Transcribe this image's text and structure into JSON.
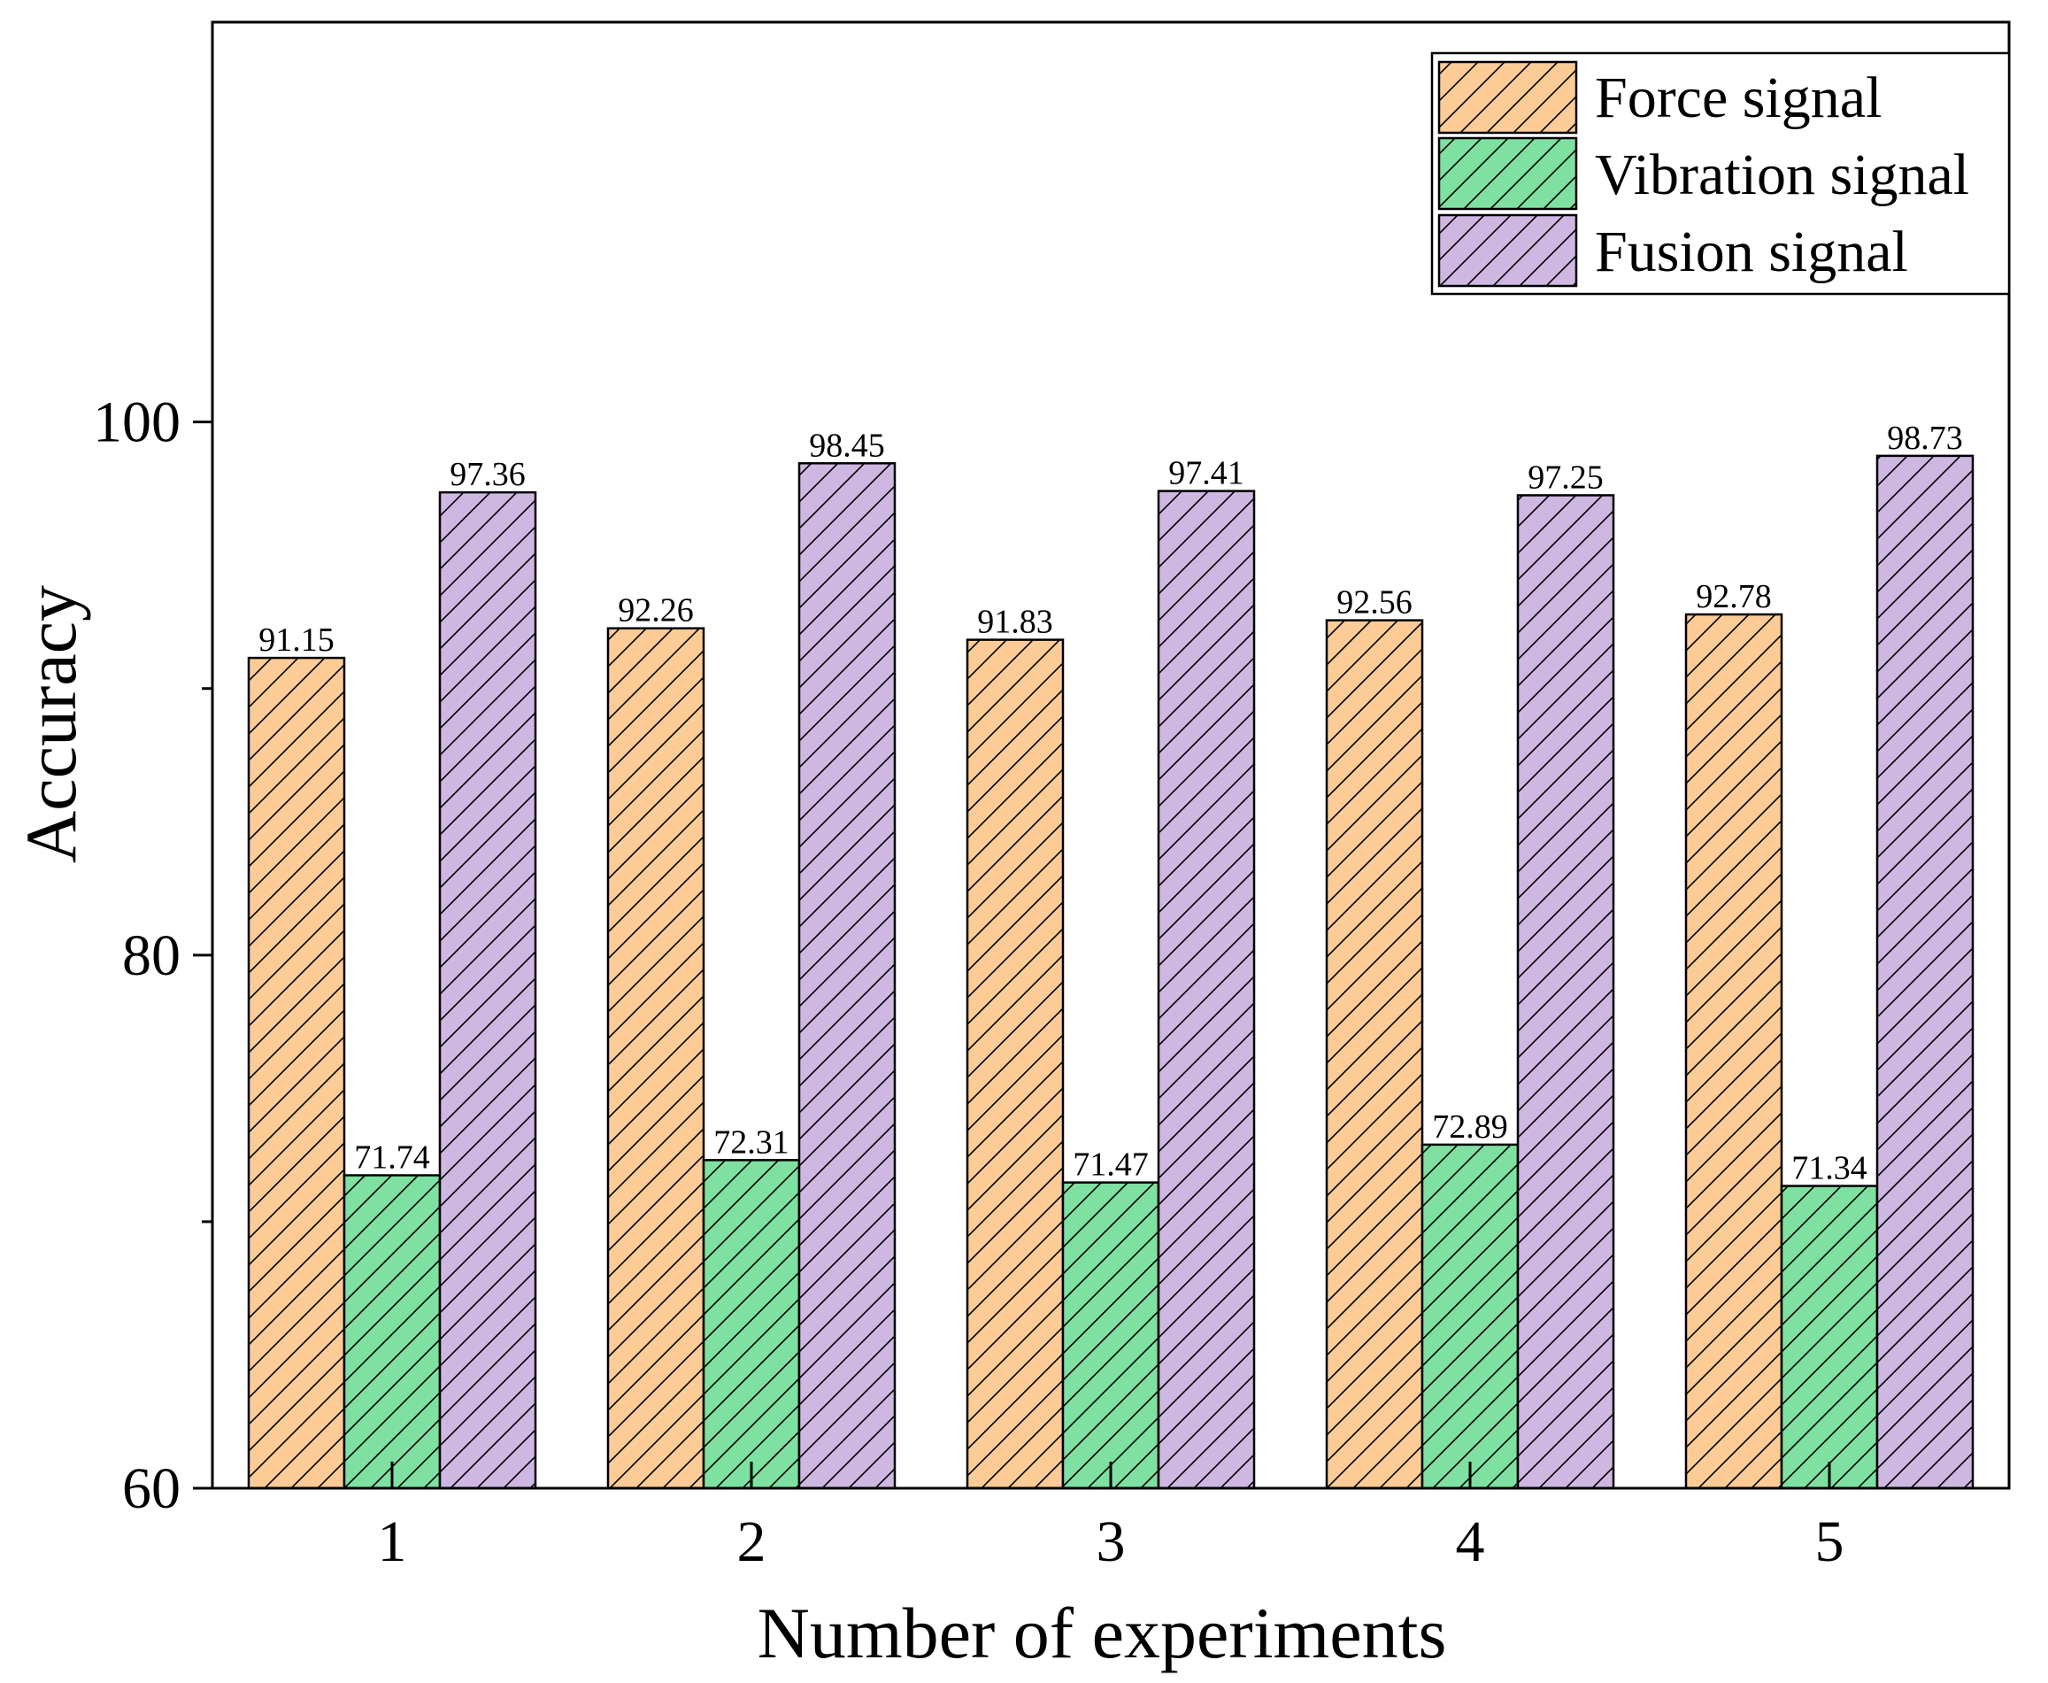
{
  "chart_data": {
    "type": "bar",
    "title": "",
    "xlabel": "Number of experiments",
    "ylabel": "Accuracy",
    "categories": [
      "1",
      "2",
      "3",
      "4",
      "5"
    ],
    "ylim": [
      60,
      115
    ],
    "yticks": [
      60,
      80,
      100
    ],
    "series": [
      {
        "name": "Force signal",
        "color": "#FDCC96",
        "pattern": "hatch-diagonal",
        "values": [
          91.15,
          92.26,
          91.83,
          92.56,
          92.78
        ],
        "labels": [
          "91.15",
          "92.26",
          "91.83",
          "92.56",
          "92.78"
        ]
      },
      {
        "name": "Vibration signal",
        "color": "#7EE0A1",
        "pattern": "hatch-diagonal",
        "values": [
          71.74,
          72.31,
          71.47,
          72.89,
          71.34
        ],
        "labels": [
          "71.74",
          "72.31",
          "71.47",
          "72.89",
          "71.34"
        ]
      },
      {
        "name": "Fusion signal",
        "color": "#CEB8E2",
        "pattern": "hatch-diagonal",
        "values": [
          97.36,
          98.45,
          97.41,
          97.25,
          98.73
        ],
        "labels": [
          "97.36",
          "98.45",
          "97.41",
          "97.25",
          "98.73"
        ]
      }
    ],
    "legend_position": "top-right",
    "grid": false
  }
}
